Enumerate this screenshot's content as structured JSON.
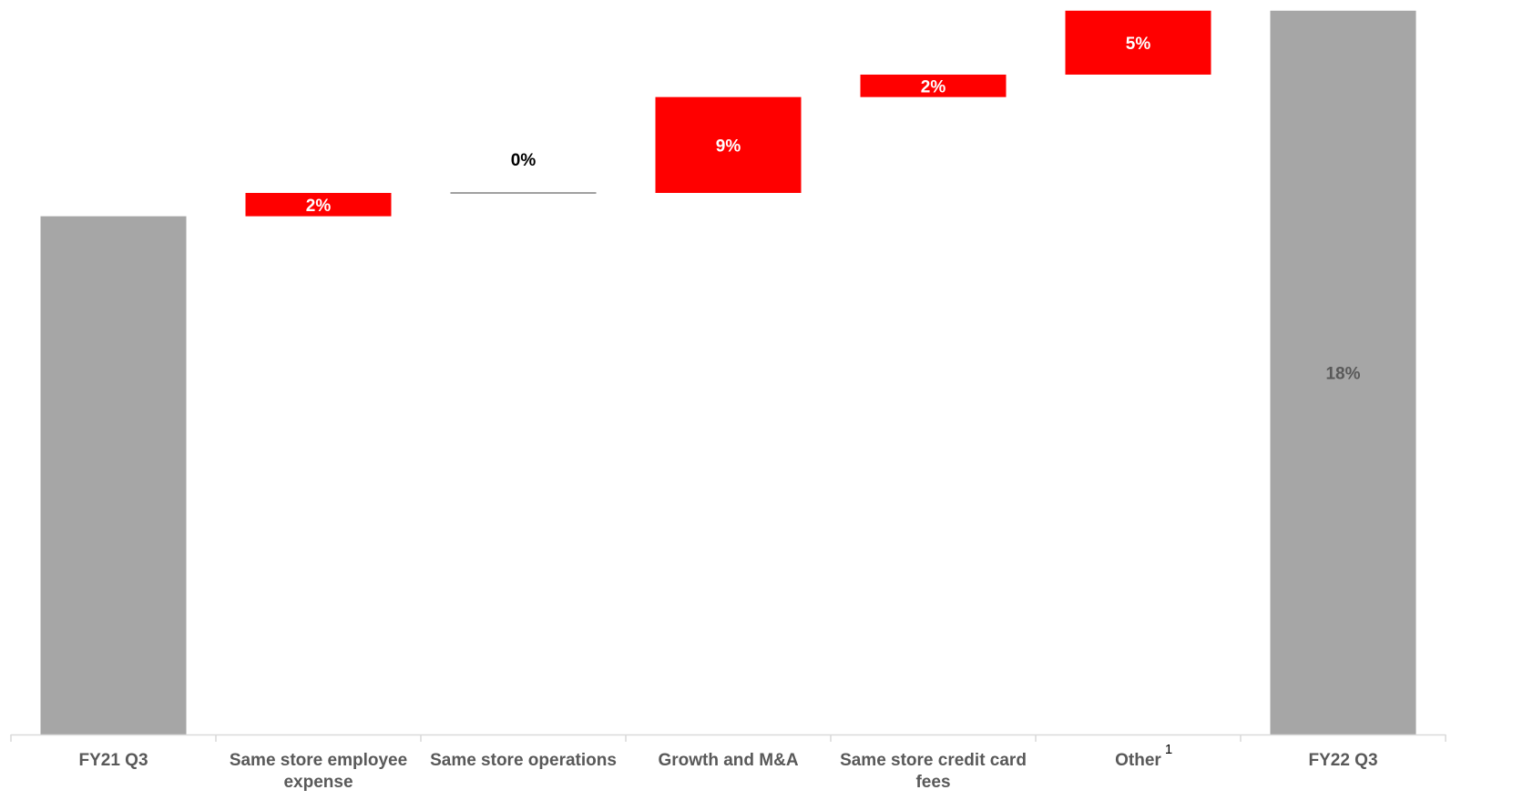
{
  "chart_data": {
    "type": "bar",
    "subtype": "waterfall",
    "title": "",
    "xlabel": "",
    "ylabel": "",
    "grid": false,
    "categories": [
      [
        "FY21 Q3"
      ],
      [
        "Same store employee",
        "expense"
      ],
      [
        "Same store operations"
      ],
      [
        "Growth and M&A"
      ],
      [
        "Same store credit card",
        "fees"
      ],
      [
        "Other"
      ],
      [
        "FY22 Q3"
      ]
    ],
    "category_footnotes": [
      "",
      "",
      "",
      "",
      "",
      "1",
      ""
    ],
    "bars": [
      {
        "kind": "total",
        "start": 0,
        "end": 60,
        "label": ""
      },
      {
        "kind": "increase",
        "start": 60,
        "end": 62.7,
        "label": "2%"
      },
      {
        "kind": "increase",
        "start": 62.7,
        "end": 62.7,
        "label": "0%"
      },
      {
        "kind": "increase",
        "start": 62.7,
        "end": 73.8,
        "label": "9%"
      },
      {
        "kind": "increase",
        "start": 73.8,
        "end": 76.4,
        "label": "2%"
      },
      {
        "kind": "increase",
        "start": 76.4,
        "end": 83.8,
        "label": "5%"
      },
      {
        "kind": "total",
        "start": 0,
        "end": 83.8,
        "label": "18%"
      }
    ],
    "ylim": [
      0,
      84.3
    ],
    "colors": {
      "total": "#a6a6a6",
      "increase": "#ff0000",
      "zero_line": "#808080",
      "axis": "#d9d9d9",
      "label_on_red": "#ffffff",
      "label_on_gray": "#595959",
      "label_zero": "#000000"
    }
  }
}
